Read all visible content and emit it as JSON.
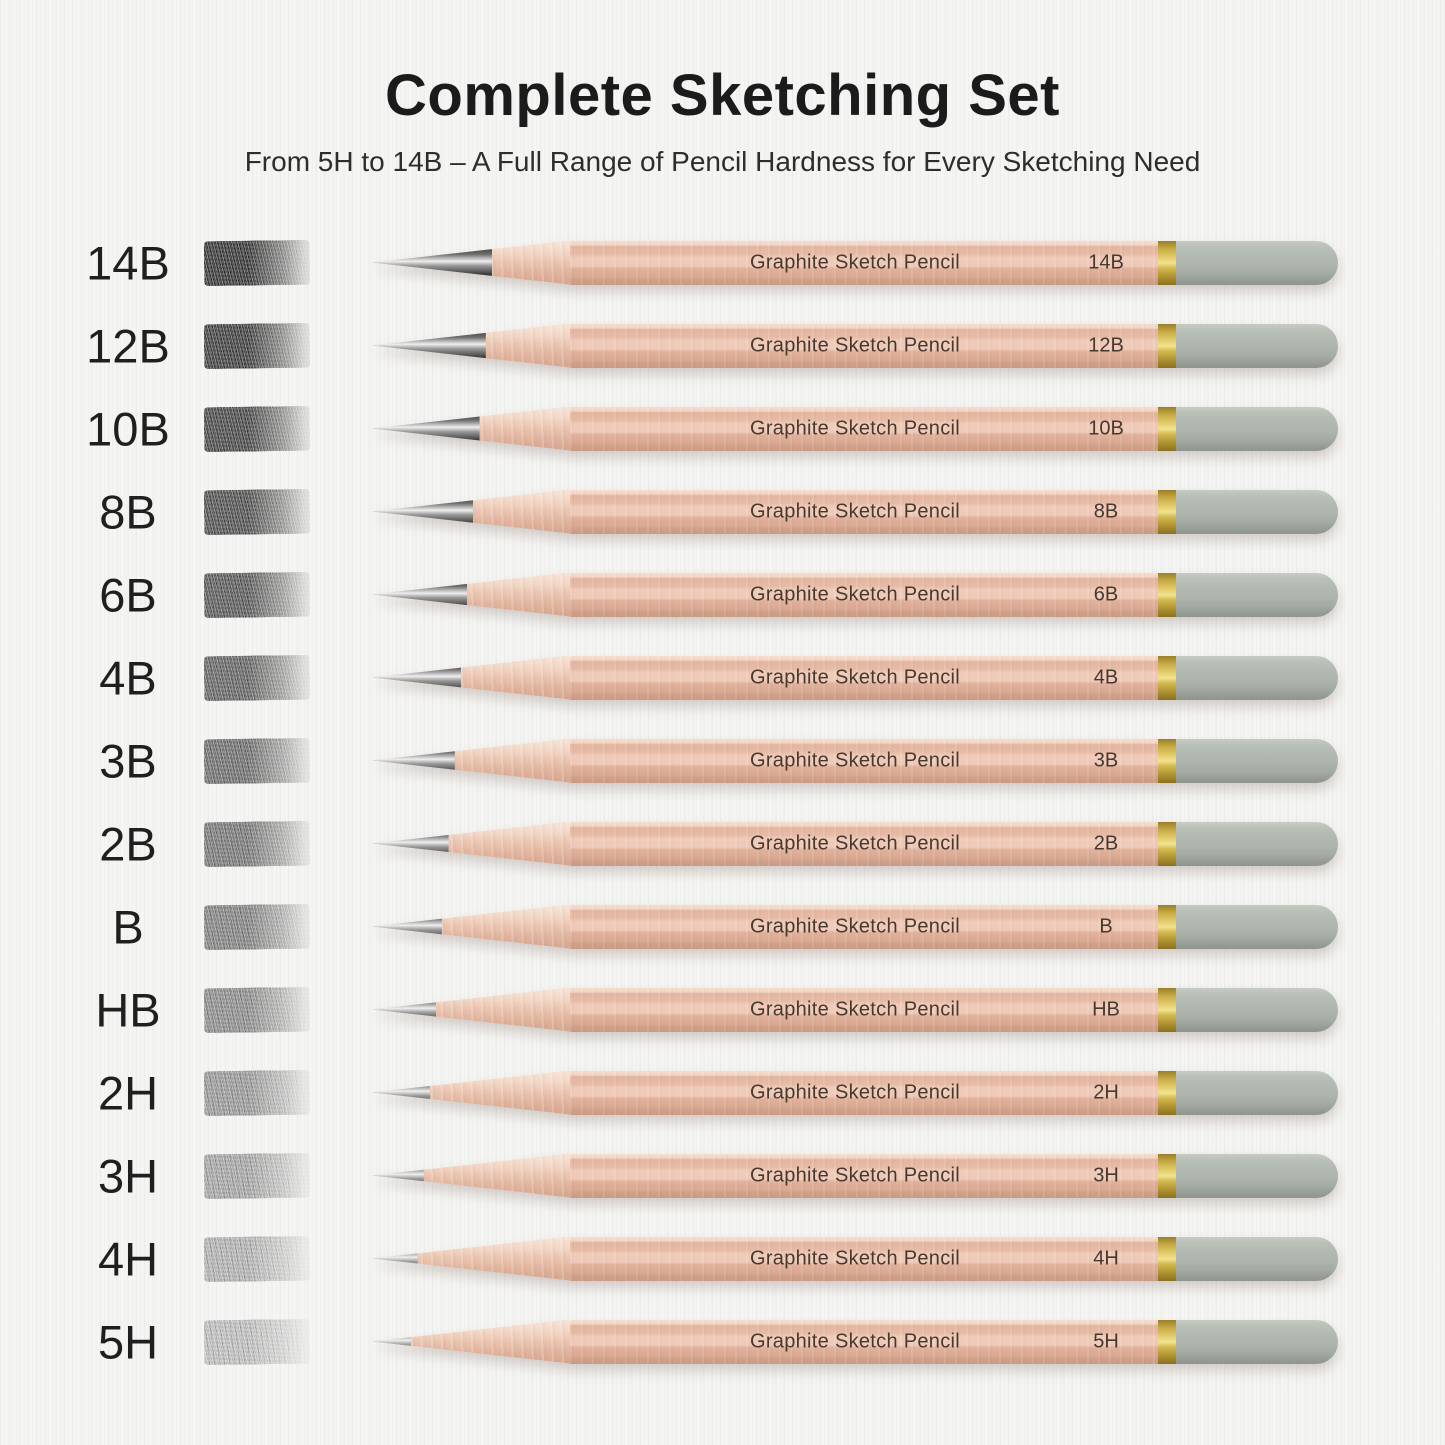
{
  "header": {
    "title": "Complete Sketching Set",
    "subtitle": "From 5H to 14B – A Full Range of Pencil Hardness for Every Sketching Need"
  },
  "pencil": {
    "brand_label": "Graphite Sketch Pencil"
  },
  "colors": {
    "background": "#f5f5f3",
    "title_text": "#1b1b1b",
    "pencil_wood": "#ecc6b2",
    "band_gold": "#c3a53f",
    "cap_gray": "#aeb5ae",
    "print_text": "#47392e"
  },
  "rows": [
    {
      "grade": "14B",
      "swatch_color": "#1c1c1c"
    },
    {
      "grade": "12B",
      "swatch_color": "#272727"
    },
    {
      "grade": "10B",
      "swatch_color": "#313131"
    },
    {
      "grade": "8B",
      "swatch_color": "#3b3b3b"
    },
    {
      "grade": "6B",
      "swatch_color": "#464646"
    },
    {
      "grade": "4B",
      "swatch_color": "#525252"
    },
    {
      "grade": "3B",
      "swatch_color": "#5d5d5d"
    },
    {
      "grade": "2B",
      "swatch_color": "#686868"
    },
    {
      "grade": "B",
      "swatch_color": "#747474"
    },
    {
      "grade": "HB",
      "swatch_color": "#808080"
    },
    {
      "grade": "2H",
      "swatch_color": "#8e8e8e"
    },
    {
      "grade": "3H",
      "swatch_color": "#9c9c9c"
    },
    {
      "grade": "4H",
      "swatch_color": "#aaaaaa"
    },
    {
      "grade": "5H",
      "swatch_color": "#b8b8b8"
    }
  ]
}
